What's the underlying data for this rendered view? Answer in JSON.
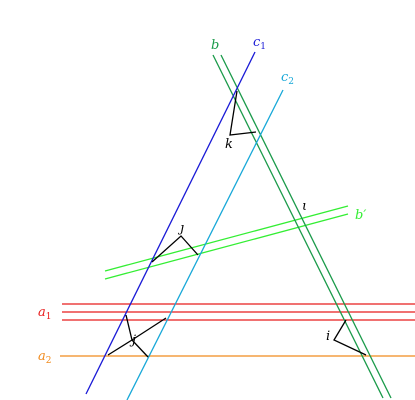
{
  "labels": {
    "b": "b",
    "c1": {
      "main": "c",
      "sub": "1"
    },
    "c2": {
      "main": "c",
      "sub": "2"
    },
    "b_prime": "b′",
    "iota": "ι",
    "j_upper": "ȷ",
    "k": "k",
    "a1": {
      "main": "a",
      "sub": "1"
    },
    "a2": {
      "main": "a",
      "sub": "2"
    },
    "j_lower": "j",
    "i": "i"
  },
  "colors": {
    "b": "#1a9a4a",
    "c1": "#1a1ad6",
    "c2": "#18a8d8",
    "b_prime": "#33ee33",
    "a1": "#e81c1c",
    "a2": "#f08a1c",
    "angle": "#000000"
  }
}
